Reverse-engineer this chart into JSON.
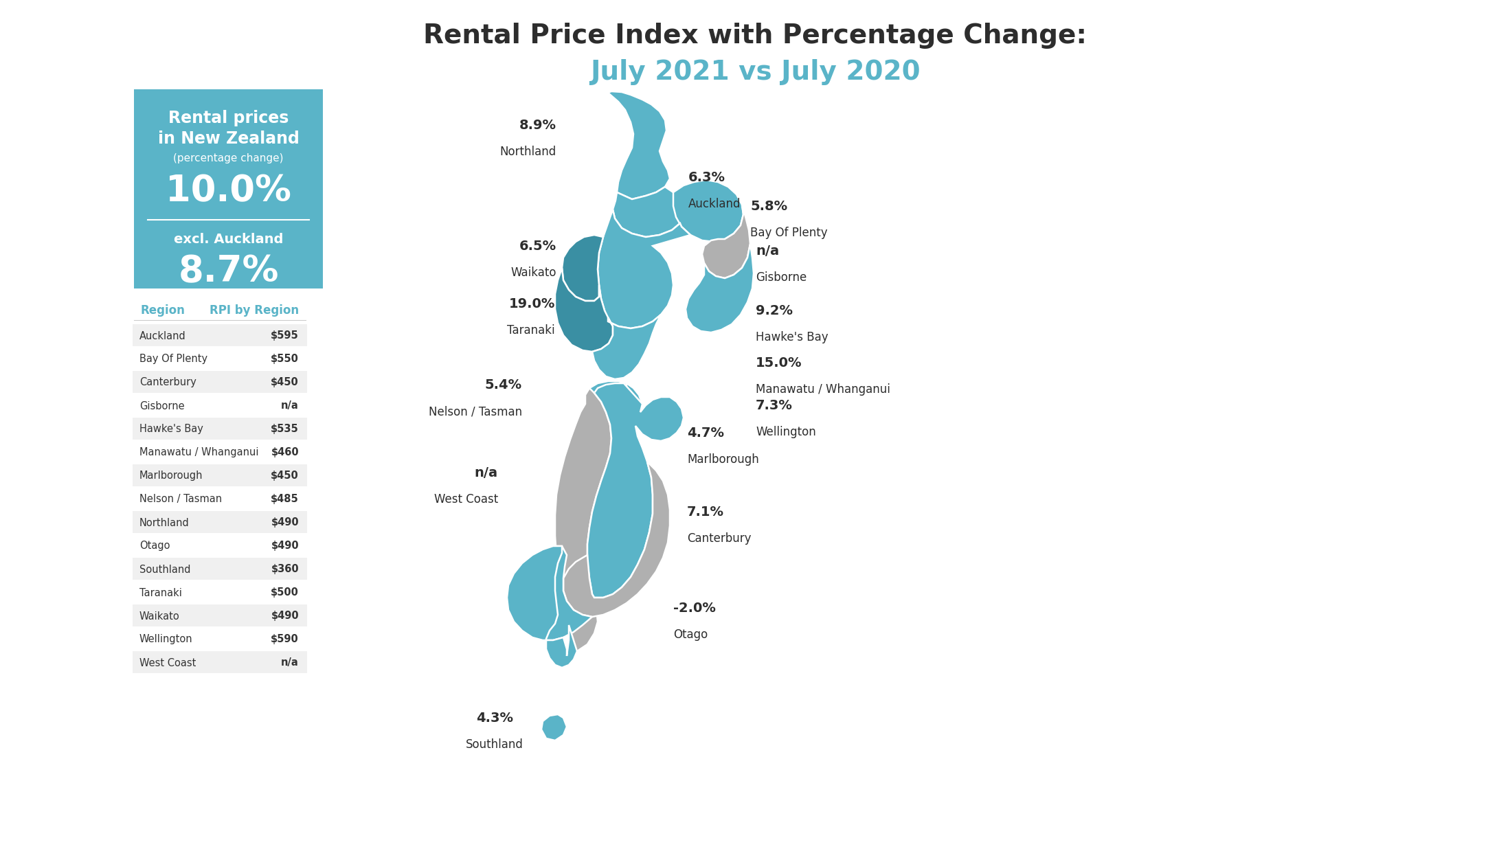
{
  "title_line1": "Rental Price Index with Percentage Change:",
  "title_line2": "July 2021 vs July 2020",
  "title_line1_color": "#2d2d2d",
  "title_line2_color": "#5ab4c8",
  "bg_color": "#ffffff",
  "box_bg_color": "#5ab4c8",
  "box_text_color": "#ffffff",
  "table_header_color": "#5ab4c8",
  "table_rows": [
    [
      "Auckland",
      "$595"
    ],
    [
      "Bay Of Plenty",
      "$550"
    ],
    [
      "Canterbury",
      "$450"
    ],
    [
      "Gisborne",
      "n/a"
    ],
    [
      "Hawke's Bay",
      "$535"
    ],
    [
      "Manawatu / Whanganui",
      "$460"
    ],
    [
      "Marlborough",
      "$450"
    ],
    [
      "Nelson / Tasman",
      "$485"
    ],
    [
      "Northland",
      "$490"
    ],
    [
      "Otago",
      "$490"
    ],
    [
      "Southland",
      "$360"
    ],
    [
      "Taranaki",
      "$500"
    ],
    [
      "Waikato",
      "$490"
    ],
    [
      "Wellington",
      "$590"
    ],
    [
      "West Coast",
      "n/a"
    ]
  ],
  "color_teal": "#5ab4c8",
  "color_dark_teal": "#3a8fa3",
  "color_grey": "#b0b0b0",
  "color_white": "#ffffff",
  "color_text": "#2d2d2d"
}
